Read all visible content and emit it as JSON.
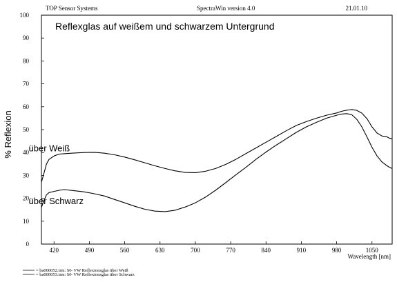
{
  "header": {
    "left": "TOP Sensor Systems",
    "center": "SpectraWin version 4.0",
    "right": "21.01.10"
  },
  "chart_data": {
    "type": "line",
    "title": "Reflexglas auf weißem und schwarzem Untergrund",
    "xlabel": "Wavelength [nm]",
    "ylabel": "% Reflexion",
    "xlim": [
      395,
      1090
    ],
    "ylim": [
      0,
      100
    ],
    "x_ticks": [
      420,
      490,
      560,
      630,
      700,
      770,
      840,
      910,
      980,
      1050
    ],
    "y_ticks": [
      0,
      10,
      20,
      30,
      40,
      50,
      60,
      70,
      80,
      90,
      100
    ],
    "grid": false,
    "legend_position": "bottom-left",
    "legend": [
      "= ba000052.trm:  M- VW Reflexionsglas über Weiß",
      "= ba000053.trm:  M- VW Reflexionsglas über Schwarz"
    ],
    "annotations": [
      {
        "text": "über Weiß",
        "x": 460,
        "y": 42
      },
      {
        "text": "über Schwarz",
        "x": 460,
        "y": 19
      }
    ],
    "series": [
      {
        "name": "über Weiß",
        "x": [
          395,
          400,
          405,
          410,
          420,
          430,
          440,
          460,
          480,
          500,
          520,
          540,
          560,
          580,
          600,
          620,
          640,
          660,
          680,
          700,
          720,
          740,
          760,
          780,
          800,
          820,
          840,
          860,
          880,
          900,
          920,
          940,
          960,
          980,
          990,
          1000,
          1010,
          1020,
          1030,
          1040,
          1050,
          1060,
          1070,
          1080,
          1085,
          1090
        ],
        "y": [
          27,
          31,
          35,
          37,
          38.5,
          39.3,
          39.5,
          39.8,
          40,
          40.1,
          39.7,
          39,
          38,
          36.8,
          35.5,
          34.2,
          33,
          32,
          31.3,
          31.2,
          31.8,
          33,
          34.8,
          37,
          39.5,
          42,
          44.5,
          47,
          49.5,
          51.8,
          53.5,
          55,
          56.3,
          57.3,
          58,
          58.5,
          58.8,
          58.4,
          57.2,
          54.8,
          51.2,
          48.5,
          47.2,
          46.8,
          46.2,
          46
        ]
      },
      {
        "name": "über Schwarz",
        "x": [
          395,
          400,
          405,
          410,
          420,
          430,
          440,
          460,
          480,
          500,
          520,
          540,
          560,
          580,
          600,
          620,
          640,
          660,
          680,
          700,
          720,
          740,
          760,
          780,
          800,
          820,
          840,
          860,
          880,
          900,
          920,
          940,
          960,
          980,
          990,
          1000,
          1010,
          1020,
          1030,
          1040,
          1050,
          1060,
          1070,
          1080,
          1085,
          1090
        ],
        "y": [
          16,
          19,
          21.5,
          22.5,
          23,
          23.5,
          23.8,
          23.3,
          22.8,
          22,
          21,
          19.5,
          18,
          16.5,
          15.2,
          14.4,
          14.2,
          14.8,
          16.2,
          18,
          20.5,
          23.5,
          26.8,
          30.2,
          33.5,
          37,
          40.2,
          43.2,
          46,
          48.8,
          51.2,
          53.2,
          55,
          56.3,
          56.8,
          57,
          56.5,
          54.5,
          51.2,
          46.8,
          42.3,
          38.5,
          35.8,
          34.2,
          33.5,
          33
        ]
      }
    ]
  }
}
